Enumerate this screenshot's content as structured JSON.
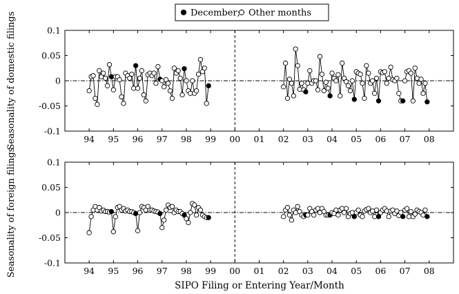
{
  "chart_data": {
    "type": "line",
    "legend": {
      "placement": "top-center",
      "entries": [
        {
          "label": "December;",
          "marker": "filled-circle"
        },
        {
          "label": "Other months",
          "marker": "open-circle"
        }
      ]
    },
    "xlabel": "SIPO Filing or Entering Year/Month",
    "x_ticks": [
      "94",
      "95",
      "96",
      "97",
      "98",
      "99",
      "00",
      "01",
      "02",
      "03",
      "04",
      "05",
      "06",
      "07",
      "08"
    ],
    "x_range": [
      1993.0,
      2009.0
    ],
    "dashed_vertical_at": 2000.0,
    "dashdot_horizontal_at": 0,
    "panels": [
      {
        "ylabel": "Seasonality of domestic filings",
        "ylim": [
          -0.1,
          0.1
        ],
        "y_ticks": [
          "-0.1",
          "-0.05",
          "0",
          "0.05",
          "0.1"
        ],
        "segments": [
          [
            -0.02,
            0.008,
            0.01,
            -0.035,
            -0.047,
            0.02,
            0.008,
            0.015,
            0.005,
            -0.01,
            0.032,
            0.008,
            -0.018,
            0.008,
            0.008,
            0.002,
            -0.032,
            -0.045,
            0.015,
            0.01,
            0.005,
            0.013,
            -0.015,
            0.03,
            -0.015,
            0.005,
            0.02,
            -0.028,
            -0.04,
            0.012,
            0.015,
            0.01,
            0.015,
            -0.005,
            0.028,
            0.003,
            0.0,
            -0.012,
            0.002,
            -0.005,
            -0.02,
            -0.035,
            0.025,
            0.015,
            0.02,
            0.005,
            -0.028,
            0.024,
            0.0,
            -0.02,
            -0.025,
            0.0,
            -0.025,
            -0.02,
            0.013,
            0.042,
            0.018,
            0.025,
            -0.045,
            -0.01
          ],
          [
            -0.012,
            0.035,
            -0.035,
            0.003,
            -0.005,
            -0.03,
            0.063,
            0.03,
            -0.017,
            -0.005,
            -0.018,
            -0.022,
            -0.005,
            0.02,
            -0.005,
            0.0,
            0.0,
            -0.018,
            0.048,
            0.013,
            -0.02,
            -0.003,
            -0.015,
            -0.03,
            0.015,
            0.005,
            0.0,
            0.012,
            -0.03,
            0.035,
            0.005,
            -0.002,
            -0.01,
            -0.02,
            0.0,
            -0.037,
            0.018,
            0.015,
            0.013,
            -0.005,
            -0.035,
            0.03,
            0.015,
            -0.005,
            0.0,
            -0.025,
            0.005,
            -0.04,
            0.018,
            0.016,
            0.018,
            -0.005,
            0.005,
            0.027,
            0.002,
            0.0,
            0.005,
            -0.025,
            -0.04,
            -0.04
          ],
          [
            0.0,
            0.018,
            0.02,
            0.015,
            -0.04,
            0.025,
            0.005,
            -0.005,
            0.003,
            -0.025,
            -0.005,
            -0.042
          ]
        ]
      },
      {
        "ylabel": "Seasonality of foreign filings",
        "ylim": [
          -0.1,
          0.1
        ],
        "y_ticks": [
          "-0.1",
          "-0.05",
          "0",
          "0.05",
          "0.1"
        ],
        "segments": [
          [
            -0.04,
            -0.008,
            0.005,
            0.012,
            0.005,
            0.01,
            0.003,
            0.005,
            0.002,
            0.002,
            0.001,
            0.002,
            -0.038,
            -0.008,
            0.01,
            0.012,
            0.005,
            0.008,
            0.003,
            0.005,
            0.002,
            0.002,
            0.0,
            -0.002,
            -0.036,
            0.0,
            0.012,
            0.01,
            0.005,
            0.012,
            0.005,
            0.005,
            0.003,
            0.002,
            0.001,
            -0.002,
            -0.03,
            -0.015,
            0.005,
            0.015,
            0.01,
            0.012,
            0.0,
            0.005,
            0.002,
            0.002,
            -0.002,
            -0.005,
            -0.012,
            -0.02,
            0.0,
            0.018,
            0.015,
            -0.005,
            0.01,
            0.005,
            -0.005,
            -0.008,
            -0.01,
            -0.01
          ],
          [
            -0.008,
            0.005,
            0.01,
            -0.005,
            -0.015,
            0.005,
            0.0,
            0.012,
            0.002,
            -0.005,
            -0.008,
            -0.005,
            -0.005,
            0.008,
            0.002,
            -0.005,
            0.005,
            0.008,
            0.0,
            0.008,
            0.002,
            -0.005,
            -0.005,
            -0.005,
            0.0,
            -0.002,
            0.005,
            -0.005,
            0.005,
            0.008,
            0.0,
            0.008,
            -0.008,
            -0.002,
            0.0,
            -0.008,
            0.0,
            0.005,
            -0.005,
            -0.008,
            0.003,
            0.006,
            0.008,
            0.0,
            0.003,
            -0.008,
            0.005,
            -0.008,
            0.0,
            0.005,
            0.008,
            0.003,
            -0.008,
            0.003,
            0.005,
            -0.002,
            0.003,
            -0.006,
            0.0,
            -0.008
          ],
          [
            0.005,
            0.008,
            -0.008,
            0.002,
            -0.008,
            -0.003,
            0.005,
            0.002,
            0.0,
            -0.005,
            0.005,
            -0.008
          ]
        ]
      }
    ]
  }
}
